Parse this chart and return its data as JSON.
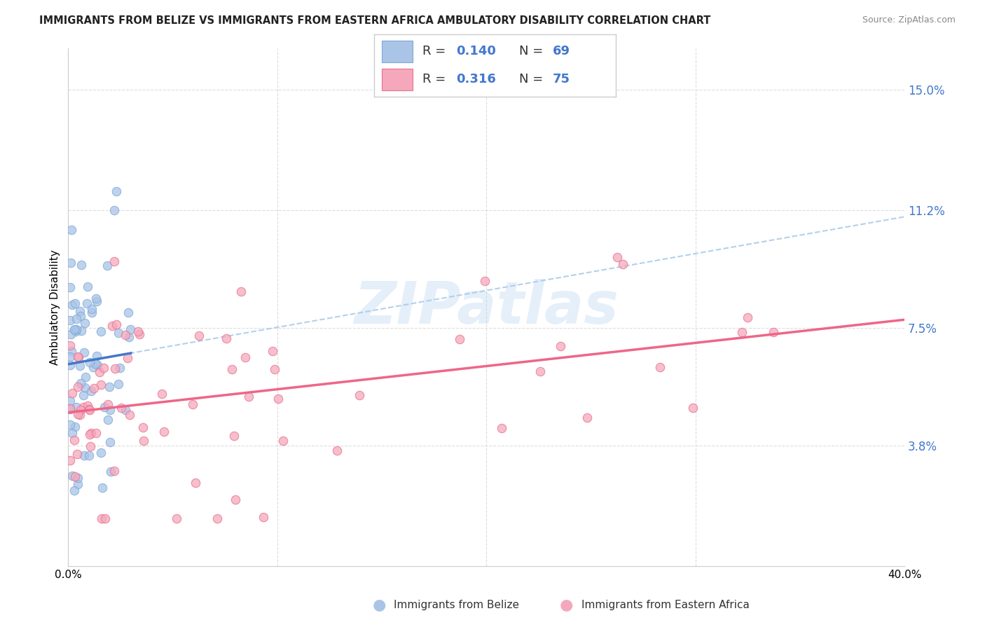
{
  "title": "IMMIGRANTS FROM BELIZE VS IMMIGRANTS FROM EASTERN AFRICA AMBULATORY DISABILITY CORRELATION CHART",
  "source": "Source: ZipAtlas.com",
  "ylabel": "Ambulatory Disability",
  "yticks": [
    0.038,
    0.075,
    0.112,
    0.15
  ],
  "ytick_labels": [
    "3.8%",
    "7.5%",
    "11.2%",
    "15.0%"
  ],
  "xticks": [
    0.0,
    0.05,
    0.1,
    0.15,
    0.2,
    0.25,
    0.3,
    0.35,
    0.4
  ],
  "xtick_labels": [
    "0.0%",
    "",
    "",
    "",
    "",
    "",
    "",
    "",
    "40.0%"
  ],
  "belize_color": "#aac4e8",
  "belize_edge_color": "#7aaad4",
  "eastern_africa_color": "#f5a8bc",
  "eastern_africa_edge_color": "#e87090",
  "belize_R": 0.14,
  "belize_N": 69,
  "eastern_africa_R": 0.316,
  "eastern_africa_N": 75,
  "legend_color": "#4477cc",
  "belize_line_color": "#4477cc",
  "eastern_africa_line_color": "#ee6688",
  "belize_dashed_color": "#aacce8",
  "watermark": "ZIPatlas",
  "background_color": "#ffffff",
  "grid_color": "#dddddd",
  "ylim": [
    0.0,
    0.163
  ],
  "xlim": [
    0.0,
    0.4
  ]
}
